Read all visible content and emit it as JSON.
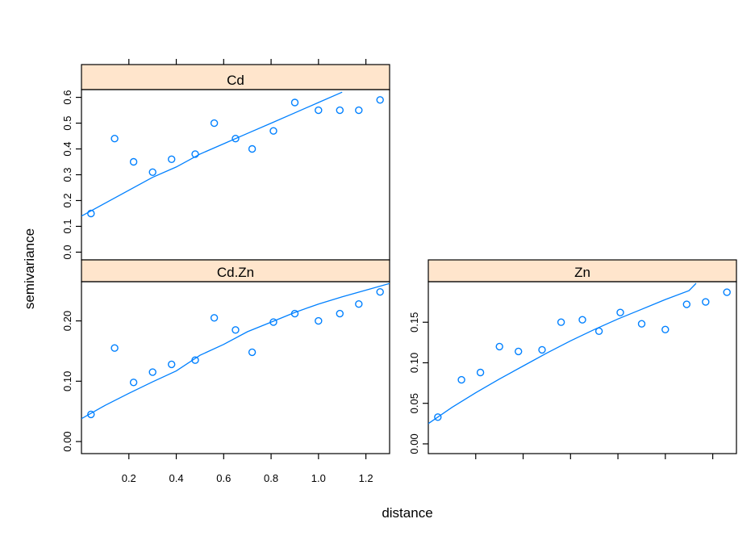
{
  "chart_data": {
    "type": "scatter",
    "xlabel": "distance",
    "ylabel": "semivariance",
    "x_ticks": [
      "0.2",
      "0.4",
      "0.6",
      "0.8",
      "1.0",
      "1.2"
    ],
    "point_color": "#0080ff",
    "line_color": "#0080ff",
    "strip_color": "#ffe5cc",
    "panels": [
      {
        "name": "Cd",
        "xlim": [
          0,
          1.3
        ],
        "ylim": [
          -0.03,
          0.63
        ],
        "y_ticks": [
          "0.0",
          "0.1",
          "0.2",
          "0.3",
          "0.4",
          "0.5",
          "0.6"
        ],
        "x": [
          0.04,
          0.14,
          0.22,
          0.3,
          0.38,
          0.48,
          0.56,
          0.65,
          0.72,
          0.81,
          0.9,
          1.0,
          1.09,
          1.17,
          1.26
        ],
        "y": [
          0.15,
          0.44,
          0.35,
          0.31,
          0.36,
          0.38,
          0.5,
          0.44,
          0.4,
          0.47,
          0.58,
          0.55,
          0.55,
          0.55,
          0.59
        ],
        "model_curve": {
          "x": [
            0.0,
            0.1,
            0.2,
            0.3,
            0.4,
            0.5,
            0.6,
            0.7,
            0.8,
            0.9,
            1.0,
            1.1
          ],
          "y": [
            0.14,
            0.19,
            0.24,
            0.29,
            0.33,
            0.38,
            0.42,
            0.46,
            0.5,
            0.54,
            0.58,
            0.62
          ]
        }
      },
      {
        "name": "Cd.Zn",
        "xlim": [
          0,
          1.3
        ],
        "ylim": [
          -0.02,
          0.265
        ],
        "y_ticks": [
          "0.00",
          "0.10",
          "0.20"
        ],
        "x": [
          0.04,
          0.14,
          0.22,
          0.3,
          0.38,
          0.48,
          0.56,
          0.65,
          0.72,
          0.81,
          0.9,
          1.0,
          1.09,
          1.17,
          1.26
        ],
        "y": [
          0.045,
          0.155,
          0.098,
          0.115,
          0.128,
          0.135,
          0.205,
          0.185,
          0.148,
          0.198,
          0.212,
          0.2,
          0.212,
          0.228,
          0.248
        ],
        "model_curve": {
          "x": [
            0.0,
            0.1,
            0.2,
            0.3,
            0.4,
            0.5,
            0.6,
            0.7,
            0.8,
            0.9,
            1.0,
            1.1,
            1.2,
            1.3
          ],
          "y": [
            0.038,
            0.06,
            0.08,
            0.099,
            0.117,
            0.143,
            0.161,
            0.182,
            0.198,
            0.214,
            0.228,
            0.24,
            0.251,
            0.262
          ]
        }
      },
      {
        "name": "Zn",
        "xlim": [
          0,
          1.3
        ],
        "ylim": [
          -0.012,
          0.2
        ],
        "y_ticks": [
          "0.00",
          "0.05",
          "0.10",
          "0.15"
        ],
        "x": [
          0.04,
          0.14,
          0.22,
          0.3,
          0.38,
          0.48,
          0.56,
          0.65,
          0.72,
          0.81,
          0.9,
          1.0,
          1.09,
          1.17,
          1.26
        ],
        "y": [
          0.033,
          0.079,
          0.088,
          0.12,
          0.114,
          0.116,
          0.15,
          0.153,
          0.139,
          0.162,
          0.148,
          0.141,
          0.172,
          0.175,
          0.187
        ],
        "model_curve": {
          "x": [
            0.0,
            0.1,
            0.2,
            0.3,
            0.4,
            0.5,
            0.6,
            0.7,
            0.8,
            0.9,
            1.0,
            1.1,
            1.13
          ],
          "y": [
            0.025,
            0.045,
            0.063,
            0.08,
            0.096,
            0.112,
            0.127,
            0.141,
            0.154,
            0.166,
            0.178,
            0.189,
            0.198
          ]
        }
      }
    ]
  }
}
